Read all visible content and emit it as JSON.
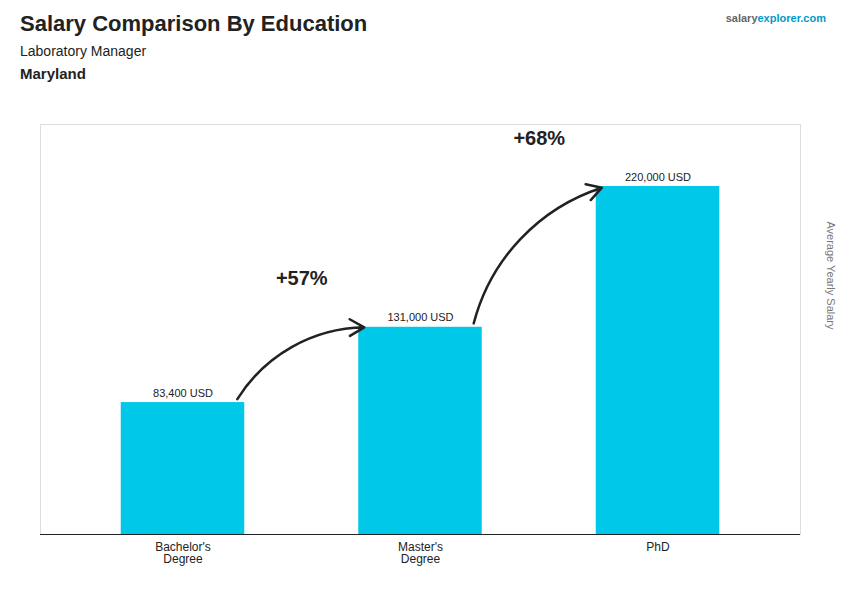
{
  "chart_data": {
    "type": "bar",
    "title": "Salary Comparison By Education",
    "subtitle": "Laboratory Manager",
    "location": "Maryland",
    "categories": [
      "Bachelor's\nDegree",
      "Master's\nDegree",
      "PhD"
    ],
    "values": [
      83400,
      131000,
      220000
    ],
    "value_labels": [
      "83,400 USD",
      "131,000 USD",
      "220,000 USD"
    ],
    "data_labels": true,
    "color": "#00c8e8",
    "ylim": [
      0,
      259200
    ],
    "tick_labels": "x",
    "grid": false,
    "ylabel": "Average Yearly Salary",
    "annotations": [
      {
        "text": "+57%",
        "from": "Bachelor's\nDegree",
        "to": "Master's\nDegree"
      },
      {
        "text": "+68%",
        "from": "Master's\nDegree",
        "to": "PhD"
      }
    ],
    "watermark": [
      "salary",
      "explorer",
      ".com"
    ]
  }
}
